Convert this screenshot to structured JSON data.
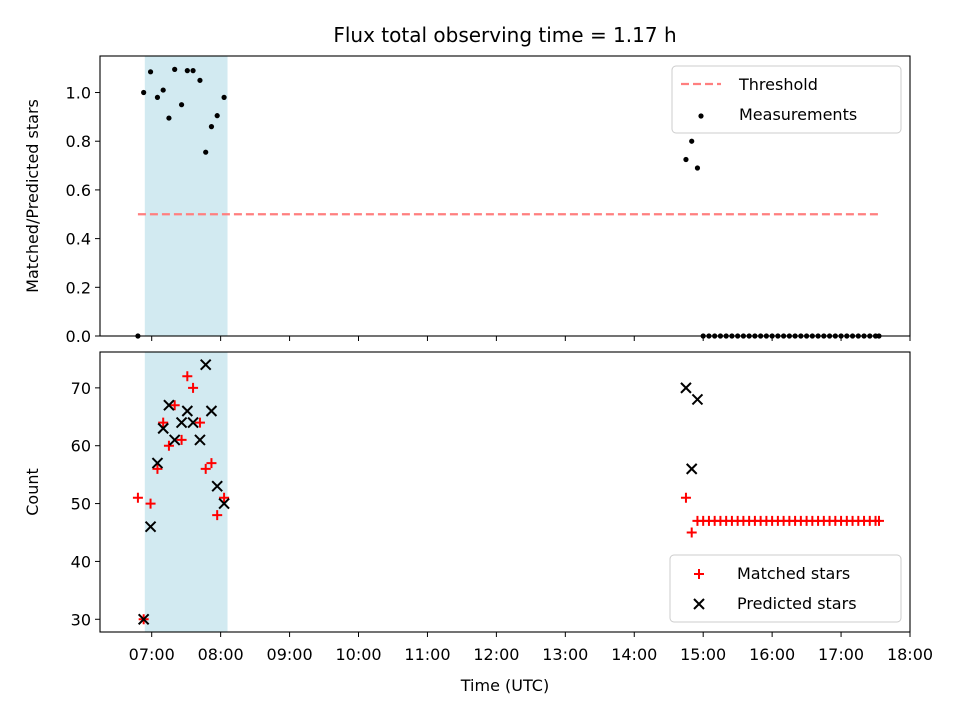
{
  "chart_data": {
    "type": "scatter",
    "title": "Flux total observing time = 1.17 h",
    "xlabel": "Time (UTC)",
    "x_ticks": [
      "07:00",
      "08:00",
      "09:00",
      "10:00",
      "11:00",
      "12:00",
      "13:00",
      "14:00",
      "15:00",
      "16:00",
      "17:00",
      "18:00"
    ],
    "xlim": [
      "06:15",
      "18:00"
    ],
    "shaded_span": {
      "start": "06:54",
      "end": "08:06",
      "color": "#add8e6"
    },
    "panels": [
      {
        "ylabel": "Matched/Predicted stars",
        "ylim": [
          0,
          1.15
        ],
        "y_ticks": [
          "0.0",
          "0.2",
          "0.4",
          "0.6",
          "0.8",
          "1.0"
        ],
        "legend": {
          "position": "top-right",
          "entries": [
            "Threshold",
            "Measurements"
          ]
        },
        "series": [
          {
            "name": "Threshold",
            "style": "dashed-line",
            "color": "#ff7f7f",
            "x": [
              "06:48",
              "17:33"
            ],
            "y": [
              0.5,
              0.5
            ]
          },
          {
            "name": "Measurements",
            "style": "dot",
            "color": "#000000",
            "x": [
              "06:48",
              "06:53",
              "06:59",
              "07:05",
              "07:10",
              "07:15",
              "07:20",
              "07:26",
              "07:31",
              "07:36",
              "07:42",
              "07:47",
              "07:52",
              "07:57",
              "08:03",
              "14:45",
              "14:50",
              "14:55",
              "15:00",
              "15:05",
              "15:10",
              "15:15",
              "15:20",
              "15:25",
              "15:30",
              "15:35",
              "15:40",
              "15:45",
              "15:50",
              "15:55",
              "16:00",
              "16:05",
              "16:10",
              "16:15",
              "16:20",
              "16:25",
              "16:30",
              "16:35",
              "16:40",
              "16:45",
              "16:50",
              "16:55",
              "17:00",
              "17:05",
              "17:10",
              "17:15",
              "17:20",
              "17:25",
              "17:30",
              "17:33"
            ],
            "y": [
              0.0,
              1.0,
              1.085,
              0.98,
              1.01,
              0.895,
              1.095,
              0.95,
              1.09,
              1.09,
              1.05,
              0.755,
              0.86,
              0.905,
              0.98,
              0.725,
              0.8,
              0.69,
              0,
              0,
              0,
              0,
              0,
              0,
              0,
              0,
              0,
              0,
              0,
              0,
              0,
              0,
              0,
              0,
              0,
              0,
              0,
              0,
              0,
              0,
              0,
              0,
              0,
              0,
              0,
              0,
              0,
              0,
              0,
              0
            ]
          }
        ]
      },
      {
        "ylabel": "Count",
        "ylim": [
          27.8,
          76.2
        ],
        "y_ticks": [
          "30",
          "40",
          "50",
          "60",
          "70"
        ],
        "legend": {
          "position": "bottom-right",
          "entries": [
            "Matched stars",
            "Predicted stars"
          ]
        },
        "series": [
          {
            "name": "Matched stars",
            "style": "plus",
            "color": "#ff0000",
            "x": [
              "06:48",
              "06:53",
              "06:59",
              "07:05",
              "07:10",
              "07:15",
              "07:20",
              "07:26",
              "07:31",
              "07:36",
              "07:42",
              "07:47",
              "07:52",
              "07:57",
              "08:03",
              "14:45",
              "14:50",
              "14:55",
              "15:00",
              "15:05",
              "15:10",
              "15:15",
              "15:20",
              "15:25",
              "15:30",
              "15:35",
              "15:40",
              "15:45",
              "15:50",
              "15:55",
              "16:00",
              "16:05",
              "16:10",
              "16:15",
              "16:20",
              "16:25",
              "16:30",
              "16:35",
              "16:40",
              "16:45",
              "16:50",
              "16:55",
              "17:00",
              "17:05",
              "17:10",
              "17:15",
              "17:20",
              "17:25",
              "17:30",
              "17:33"
            ],
            "y": [
              51,
              30,
              50,
              56,
              64,
              60,
              67,
              61,
              72,
              70,
              64,
              56,
              57,
              48,
              51,
              51,
              45,
              47,
              47,
              47,
              47,
              47,
              47,
              47,
              47,
              47,
              47,
              47,
              47,
              47,
              47,
              47,
              47,
              47,
              47,
              47,
              47,
              47,
              47,
              47,
              47,
              47,
              47,
              47,
              47,
              47,
              47,
              47,
              47,
              47
            ]
          },
          {
            "name": "Predicted stars",
            "style": "x",
            "color": "#000000",
            "x": [
              "06:53",
              "06:59",
              "07:05",
              "07:10",
              "07:15",
              "07:20",
              "07:26",
              "07:31",
              "07:36",
              "07:42",
              "07:47",
              "07:52",
              "07:57",
              "08:03",
              "14:45",
              "14:50",
              "14:55"
            ],
            "y": [
              30,
              46,
              57,
              63,
              67,
              61,
              64,
              66,
              64,
              61,
              74,
              66,
              53,
              50,
              70,
              56,
              68
            ]
          }
        ]
      }
    ]
  }
}
